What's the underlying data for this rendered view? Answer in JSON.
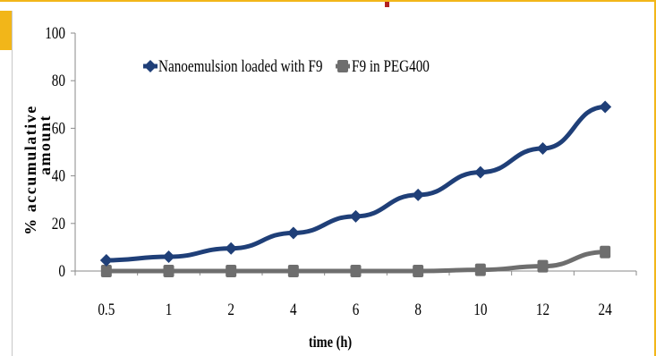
{
  "chart_data": {
    "type": "line",
    "categories": [
      "0.5",
      "1",
      "2",
      "4",
      "6",
      "8",
      "10",
      "12",
      "24"
    ],
    "series": [
      {
        "name": "Nanoemulsion loaded with F9",
        "color": "#1f3f78",
        "marker": "diamond",
        "values": [
          4.5,
          6,
          9.5,
          16,
          23,
          32,
          41.5,
          51.5,
          69
        ]
      },
      {
        "name": "F9 in PEG400",
        "color": "#6e6e6e",
        "marker": "square",
        "values": [
          0,
          0,
          0,
          0,
          0,
          0,
          0.5,
          2,
          8
        ]
      }
    ],
    "xlabel": "time (h)",
    "ylabel_lines": [
      "% accumulative",
      "amount"
    ],
    "yticks": [
      0,
      20,
      40,
      60,
      80,
      100
    ],
    "ylim": [
      0,
      100
    ],
    "legend_position": "top",
    "grid": false
  },
  "colors": {
    "frame_accent": "#f2b619",
    "top_mark": "#b22222"
  }
}
